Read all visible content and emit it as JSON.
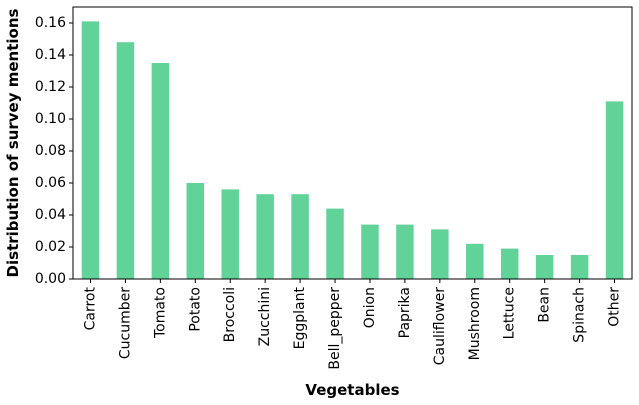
{
  "chart_data": {
    "type": "bar",
    "categories": [
      "Carrot",
      "Cucumber",
      "Tomato",
      "Potato",
      "Broccoli",
      "Zucchini",
      "Eggplant",
      "Bell_pepper",
      "Onion",
      "Paprika",
      "Cauliflower",
      "Mushroom",
      "Lettuce",
      "Bean",
      "Spinach",
      "Other"
    ],
    "values": [
      0.161,
      0.148,
      0.135,
      0.06,
      0.056,
      0.053,
      0.053,
      0.044,
      0.034,
      0.034,
      0.031,
      0.022,
      0.019,
      0.015,
      0.015,
      0.111
    ],
    "title": "",
    "xlabel": "Vegetables",
    "ylabel": "Distribution of survey mentions",
    "ylim": [
      0,
      0.17
    ],
    "yticks": [
      "0.00",
      "0.02",
      "0.04",
      "0.06",
      "0.08",
      "0.10",
      "0.12",
      "0.14",
      "0.16"
    ],
    "bar_color": "#61d399",
    "grid": false,
    "legend": "none"
  }
}
